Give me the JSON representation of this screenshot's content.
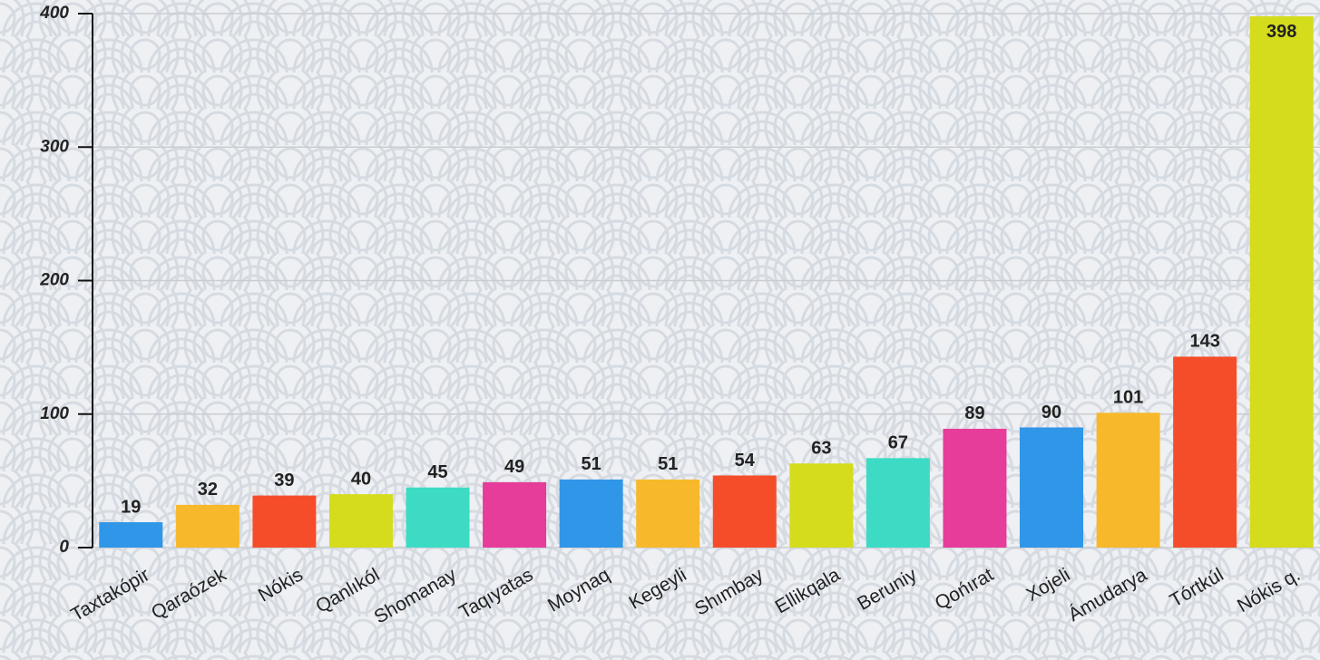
{
  "chart_data": {
    "type": "bar",
    "categories": [
      "Taxtakópir",
      "Qaraózek",
      "Nókis",
      "Qanlıkól",
      "Shomanay",
      "Taqıyatas",
      "Moynaq",
      "Kegeyli",
      "Shımbay",
      "Ellikqala",
      "Beruniy",
      "Qońırat",
      "Xojeli",
      "Ámudarya",
      "Tórtkúl",
      "Nókis q."
    ],
    "values": [
      19,
      32,
      39,
      40,
      45,
      49,
      51,
      51,
      54,
      63,
      67,
      89,
      90,
      101,
      143,
      398
    ],
    "colors": [
      "#2f96e8",
      "#f7b92b",
      "#f54d2a",
      "#d5dc1c",
      "#3ddbc4",
      "#e63c9a",
      "#2f96e8",
      "#f7b92b",
      "#f54d2a",
      "#d5dc1c",
      "#3ddbc4",
      "#e63c9a",
      "#2f96e8",
      "#f7b92b",
      "#f54d2a",
      "#d5dc1c"
    ],
    "ylim": [
      0,
      400
    ],
    "yticks": [
      0,
      100,
      200,
      300,
      400
    ],
    "grid": true
  }
}
